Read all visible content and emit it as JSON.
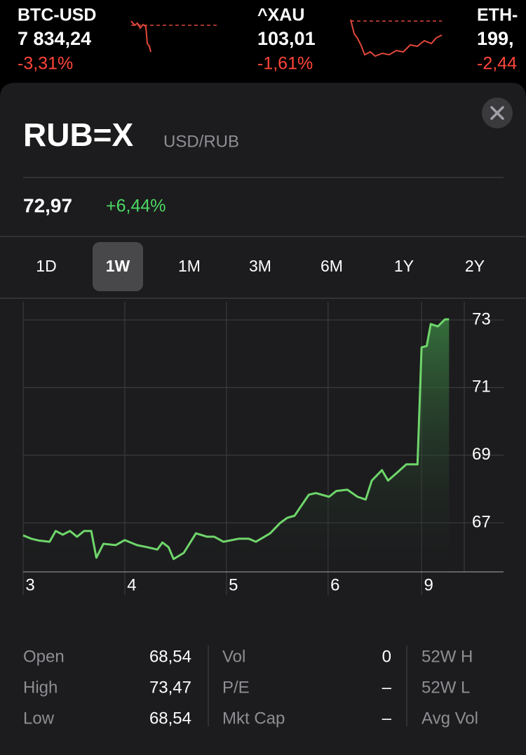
{
  "tickers": [
    {
      "symbol": "BTC-USD",
      "price": "7 834,24",
      "change": "-3,31%"
    },
    {
      "symbol": "^XAU",
      "price": "103,01",
      "change": "-1,61%"
    },
    {
      "symbol": "ETH-",
      "price": "199,",
      "change": "-2,44"
    }
  ],
  "header": {
    "symbol": "RUB=X",
    "name": "USD/RUB",
    "price": "72,97",
    "change": "+6,44%"
  },
  "ranges": {
    "options": [
      "1D",
      "1W",
      "1M",
      "3M",
      "6M",
      "1Y",
      "2Y"
    ],
    "selected": 1
  },
  "chart_data": {
    "type": "line",
    "x": [
      0,
      0.08,
      0.15,
      0.26,
      0.32,
      0.39,
      0.46,
      0.53,
      0.6,
      0.67,
      0.72,
      0.79,
      0.91,
      1.0,
      1.12,
      1.22,
      1.32,
      1.37,
      1.43,
      1.48,
      1.58,
      1.7,
      1.81,
      1.88,
      1.97,
      2.12,
      2.22,
      2.29,
      2.43,
      2.53,
      2.6,
      2.67,
      2.74,
      2.81,
      2.88,
      3.01,
      3.08,
      3.19,
      3.29,
      3.37,
      3.43,
      3.53,
      3.59,
      3.67,
      3.77,
      3.88,
      3.92,
      3.97,
      4.01,
      4.08,
      4.15,
      4.19
    ],
    "series": [
      {
        "color": "#6fd66b",
        "values": [
          66.63,
          66.53,
          66.48,
          66.44,
          66.76,
          66.65,
          66.76,
          66.59,
          66.76,
          66.76,
          65.97,
          66.38,
          66.34,
          66.49,
          66.34,
          66.28,
          66.21,
          66.42,
          66.28,
          65.93,
          66.11,
          66.69,
          66.59,
          66.59,
          66.44,
          66.53,
          66.53,
          66.44,
          66.69,
          67.0,
          67.15,
          67.21,
          67.52,
          67.83,
          67.88,
          67.77,
          67.94,
          67.98,
          67.77,
          67.69,
          68.25,
          68.56,
          68.25,
          68.46,
          68.73,
          68.73,
          72.19,
          72.23,
          72.88,
          72.81,
          73.02,
          73.02
        ]
      }
    ],
    "xlim": [
      0,
      4.34
    ],
    "xticks": [
      {
        "value": 0,
        "label": "3"
      },
      {
        "value": 1,
        "label": "4"
      },
      {
        "value": 2,
        "label": "5"
      },
      {
        "value": 3,
        "label": "6"
      },
      {
        "value": 3.92,
        "label": "9"
      }
    ],
    "ylim": [
      65.55,
      73.54
    ],
    "yticks": [
      67,
      69,
      71,
      73
    ],
    "grid": true
  },
  "stats": {
    "rows": [
      [
        "Open",
        "68,54",
        "Vol",
        "0",
        "52W H"
      ],
      [
        "High",
        "73,47",
        "P/E",
        "–",
        "52W L"
      ],
      [
        "Low",
        "68,54",
        "Mkt Cap",
        "–",
        "Avg Vol"
      ]
    ]
  }
}
